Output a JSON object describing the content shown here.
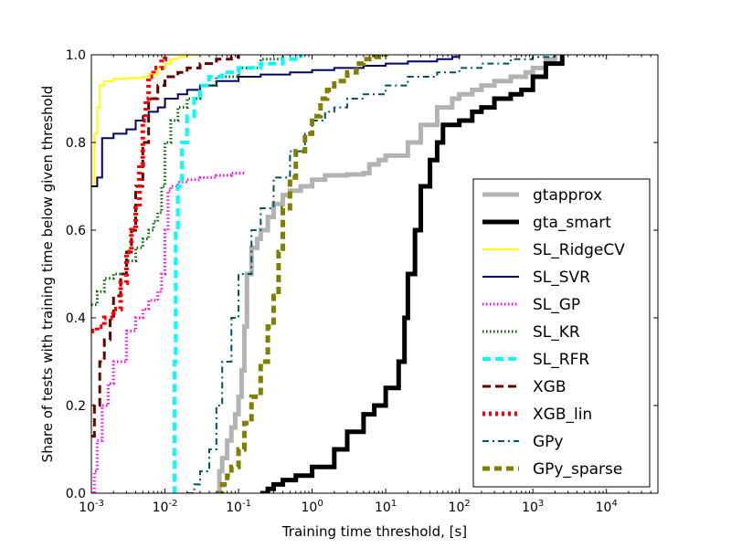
{
  "chart_data": {
    "type": "line",
    "title": "",
    "xlabel": "Training time threshold, [s]",
    "ylabel": "Share of tests with training time below given threshold",
    "xscale": "log",
    "xlim": [
      0.001,
      50000
    ],
    "ylim": [
      0.0,
      1.0
    ],
    "grid": false,
    "legend_position": "lower-right",
    "y_ticks": [
      {
        "v": 0.0,
        "label": "0.0"
      },
      {
        "v": 0.2,
        "label": "0.2"
      },
      {
        "v": 0.4,
        "label": "0.4"
      },
      {
        "v": 0.6,
        "label": "0.6"
      },
      {
        "v": 0.8,
        "label": "0.8"
      },
      {
        "v": 1.0,
        "label": "1.0"
      }
    ],
    "x_ticks": [
      {
        "v": 0.001,
        "base": "10",
        "exp": "-3"
      },
      {
        "v": 0.01,
        "base": "10",
        "exp": "-2"
      },
      {
        "v": 0.1,
        "base": "10",
        "exp": "-1"
      },
      {
        "v": 1,
        "base": "10",
        "exp": "0"
      },
      {
        "v": 10,
        "base": "10",
        "exp": "1"
      },
      {
        "v": 100,
        "base": "10",
        "exp": "2"
      },
      {
        "v": 1000,
        "base": "10",
        "exp": "3"
      },
      {
        "v": 10000,
        "base": "10",
        "exp": "4"
      }
    ],
    "series": [
      {
        "name": "gtapprox",
        "color": "#b3b3b3",
        "style": "solid-thick",
        "x": [
          0.05,
          0.055,
          0.06,
          0.07,
          0.08,
          0.09,
          0.1,
          0.11,
          0.12,
          0.13,
          0.15,
          0.18,
          0.2,
          0.25,
          0.3,
          0.4,
          0.5,
          0.7,
          1.0,
          1.5,
          3,
          5,
          6,
          8,
          10,
          20,
          30,
          50,
          80,
          100,
          150,
          200,
          300,
          500,
          800,
          1000,
          1500,
          2000
        ],
        "y": [
          0.0,
          0.05,
          0.08,
          0.12,
          0.15,
          0.18,
          0.22,
          0.28,
          0.38,
          0.5,
          0.56,
          0.58,
          0.6,
          0.63,
          0.66,
          0.68,
          0.69,
          0.7,
          0.715,
          0.725,
          0.727,
          0.73,
          0.75,
          0.76,
          0.77,
          0.8,
          0.84,
          0.88,
          0.9,
          0.91,
          0.92,
          0.93,
          0.94,
          0.95,
          0.96,
          0.97,
          0.99,
          1.0
        ]
      },
      {
        "name": "gta_smart",
        "color": "#000000",
        "style": "solid-heavy",
        "x": [
          0.2,
          0.25,
          0.3,
          0.4,
          0.6,
          1,
          2,
          3,
          5,
          7,
          10,
          15,
          18,
          20,
          25,
          30,
          40,
          50,
          60,
          80,
          100,
          150,
          200,
          300,
          500,
          700,
          1000,
          1500,
          2500
        ],
        "y": [
          0.0,
          0.01,
          0.02,
          0.03,
          0.04,
          0.06,
          0.1,
          0.14,
          0.18,
          0.2,
          0.24,
          0.3,
          0.4,
          0.5,
          0.6,
          0.7,
          0.76,
          0.8,
          0.84,
          0.84,
          0.85,
          0.87,
          0.88,
          0.9,
          0.91,
          0.92,
          0.95,
          0.98,
          1.0
        ]
      },
      {
        "name": "SL_RidgeCV",
        "color": "#ffff00",
        "style": "solid",
        "x": [
          0.001,
          0.0011,
          0.0012,
          0.0013,
          0.0015,
          0.002,
          0.003,
          0.005,
          0.006,
          0.008,
          0.01,
          0.012,
          0.015,
          0.02,
          0.03
        ],
        "y": [
          0.7,
          0.82,
          0.88,
          0.93,
          0.94,
          0.945,
          0.947,
          0.95,
          0.955,
          0.97,
          0.98,
          0.99,
          0.995,
          1.0,
          1.0
        ]
      },
      {
        "name": "SL_SVR",
        "color": "#000066",
        "style": "solid",
        "x": [
          0.001,
          0.0012,
          0.0014,
          0.002,
          0.003,
          0.004,
          0.005,
          0.006,
          0.008,
          0.01,
          0.015,
          0.02,
          0.03,
          0.05,
          0.1,
          0.2,
          0.5,
          1,
          2,
          5,
          10,
          20,
          50,
          80,
          100
        ],
        "y": [
          0.7,
          0.72,
          0.81,
          0.82,
          0.83,
          0.85,
          0.86,
          0.87,
          0.88,
          0.9,
          0.91,
          0.92,
          0.93,
          0.94,
          0.95,
          0.955,
          0.96,
          0.965,
          0.97,
          0.975,
          0.98,
          0.985,
          0.99,
          0.995,
          1.0
        ]
      },
      {
        "name": "SL_GP",
        "color": "#ff00ff",
        "style": "dotted",
        "x": [
          0.001,
          0.0011,
          0.0012,
          0.0014,
          0.0017,
          0.002,
          0.003,
          0.004,
          0.005,
          0.006,
          0.008,
          0.009,
          0.01,
          0.011,
          0.012,
          0.015,
          0.02,
          0.03,
          0.05,
          0.08,
          0.12
        ],
        "y": [
          0.0,
          0.05,
          0.12,
          0.2,
          0.25,
          0.3,
          0.37,
          0.4,
          0.42,
          0.44,
          0.46,
          0.5,
          0.6,
          0.69,
          0.7,
          0.71,
          0.715,
          0.72,
          0.725,
          0.73,
          0.735
        ]
      },
      {
        "name": "SL_KR",
        "color": "#006600",
        "style": "dotted",
        "x": [
          0.001,
          0.0012,
          0.0015,
          0.002,
          0.003,
          0.004,
          0.005,
          0.006,
          0.007,
          0.008,
          0.009,
          0.01,
          0.012,
          0.015,
          0.02,
          0.03,
          0.05,
          0.1,
          0.2,
          0.4
        ],
        "y": [
          0.43,
          0.46,
          0.49,
          0.5,
          0.53,
          0.56,
          0.58,
          0.6,
          0.62,
          0.64,
          0.7,
          0.8,
          0.85,
          0.88,
          0.9,
          0.93,
          0.95,
          0.97,
          0.99,
          1.0
        ]
      },
      {
        "name": "SL_RFR",
        "color": "#00ffff",
        "style": "dashed",
        "x": [
          0.013,
          0.0135,
          0.014,
          0.015,
          0.017,
          0.02,
          0.025,
          0.03,
          0.04,
          0.06,
          0.1,
          0.2,
          0.4,
          0.7
        ],
        "y": [
          0.0,
          0.3,
          0.6,
          0.7,
          0.8,
          0.86,
          0.9,
          0.93,
          0.95,
          0.96,
          0.97,
          0.98,
          0.99,
          1.0
        ]
      },
      {
        "name": "XGB",
        "color": "#660000",
        "style": "dashed",
        "x": [
          0.001,
          0.0011,
          0.0013,
          0.0015,
          0.0018,
          0.002,
          0.0025,
          0.003,
          0.0035,
          0.004,
          0.005,
          0.006,
          0.008,
          0.01,
          0.015,
          0.02,
          0.03,
          0.05,
          0.08,
          0.1
        ],
        "y": [
          0.13,
          0.2,
          0.3,
          0.35,
          0.4,
          0.45,
          0.5,
          0.55,
          0.6,
          0.7,
          0.8,
          0.9,
          0.93,
          0.95,
          0.96,
          0.97,
          0.98,
          0.99,
          0.995,
          1.0
        ]
      },
      {
        "name": "XGB_lin",
        "color": "#ff0000",
        "style": "dash-dot",
        "x": [
          0.001,
          0.0012,
          0.0015,
          0.002,
          0.0025,
          0.003,
          0.0035,
          0.004,
          0.0045,
          0.005,
          0.0055,
          0.006,
          0.007,
          0.009,
          0.01
        ],
        "y": [
          0.37,
          0.38,
          0.4,
          0.42,
          0.48,
          0.55,
          0.6,
          0.65,
          0.75,
          0.85,
          0.9,
          0.95,
          0.97,
          0.99,
          1.0
        ]
      },
      {
        "name": "GPy",
        "color": "#005555",
        "style": "dash-dot",
        "x": [
          0.02,
          0.025,
          0.03,
          0.04,
          0.05,
          0.06,
          0.08,
          0.1,
          0.15,
          0.2,
          0.3,
          0.5,
          0.8,
          1,
          1.5,
          2,
          3,
          5,
          10,
          20,
          50,
          100,
          200,
          500,
          1000,
          2000
        ],
        "y": [
          0.0,
          0.02,
          0.05,
          0.1,
          0.2,
          0.3,
          0.4,
          0.5,
          0.6,
          0.65,
          0.72,
          0.78,
          0.82,
          0.85,
          0.87,
          0.88,
          0.9,
          0.91,
          0.93,
          0.95,
          0.96,
          0.97,
          0.98,
          0.99,
          0.995,
          1.0
        ]
      },
      {
        "name": "GPy_sparse",
        "color": "#808000",
        "style": "dashed",
        "x": [
          0.05,
          0.06,
          0.07,
          0.08,
          0.1,
          0.12,
          0.15,
          0.2,
          0.25,
          0.3,
          0.35,
          0.4,
          0.5,
          0.6,
          0.8,
          1,
          1.3,
          1.6,
          2,
          3,
          4,
          5,
          7,
          10
        ],
        "y": [
          0.0,
          0.02,
          0.04,
          0.06,
          0.1,
          0.16,
          0.22,
          0.3,
          0.38,
          0.45,
          0.55,
          0.65,
          0.72,
          0.78,
          0.82,
          0.86,
          0.9,
          0.92,
          0.94,
          0.96,
          0.98,
          0.99,
          0.995,
          1.0
        ]
      }
    ]
  }
}
